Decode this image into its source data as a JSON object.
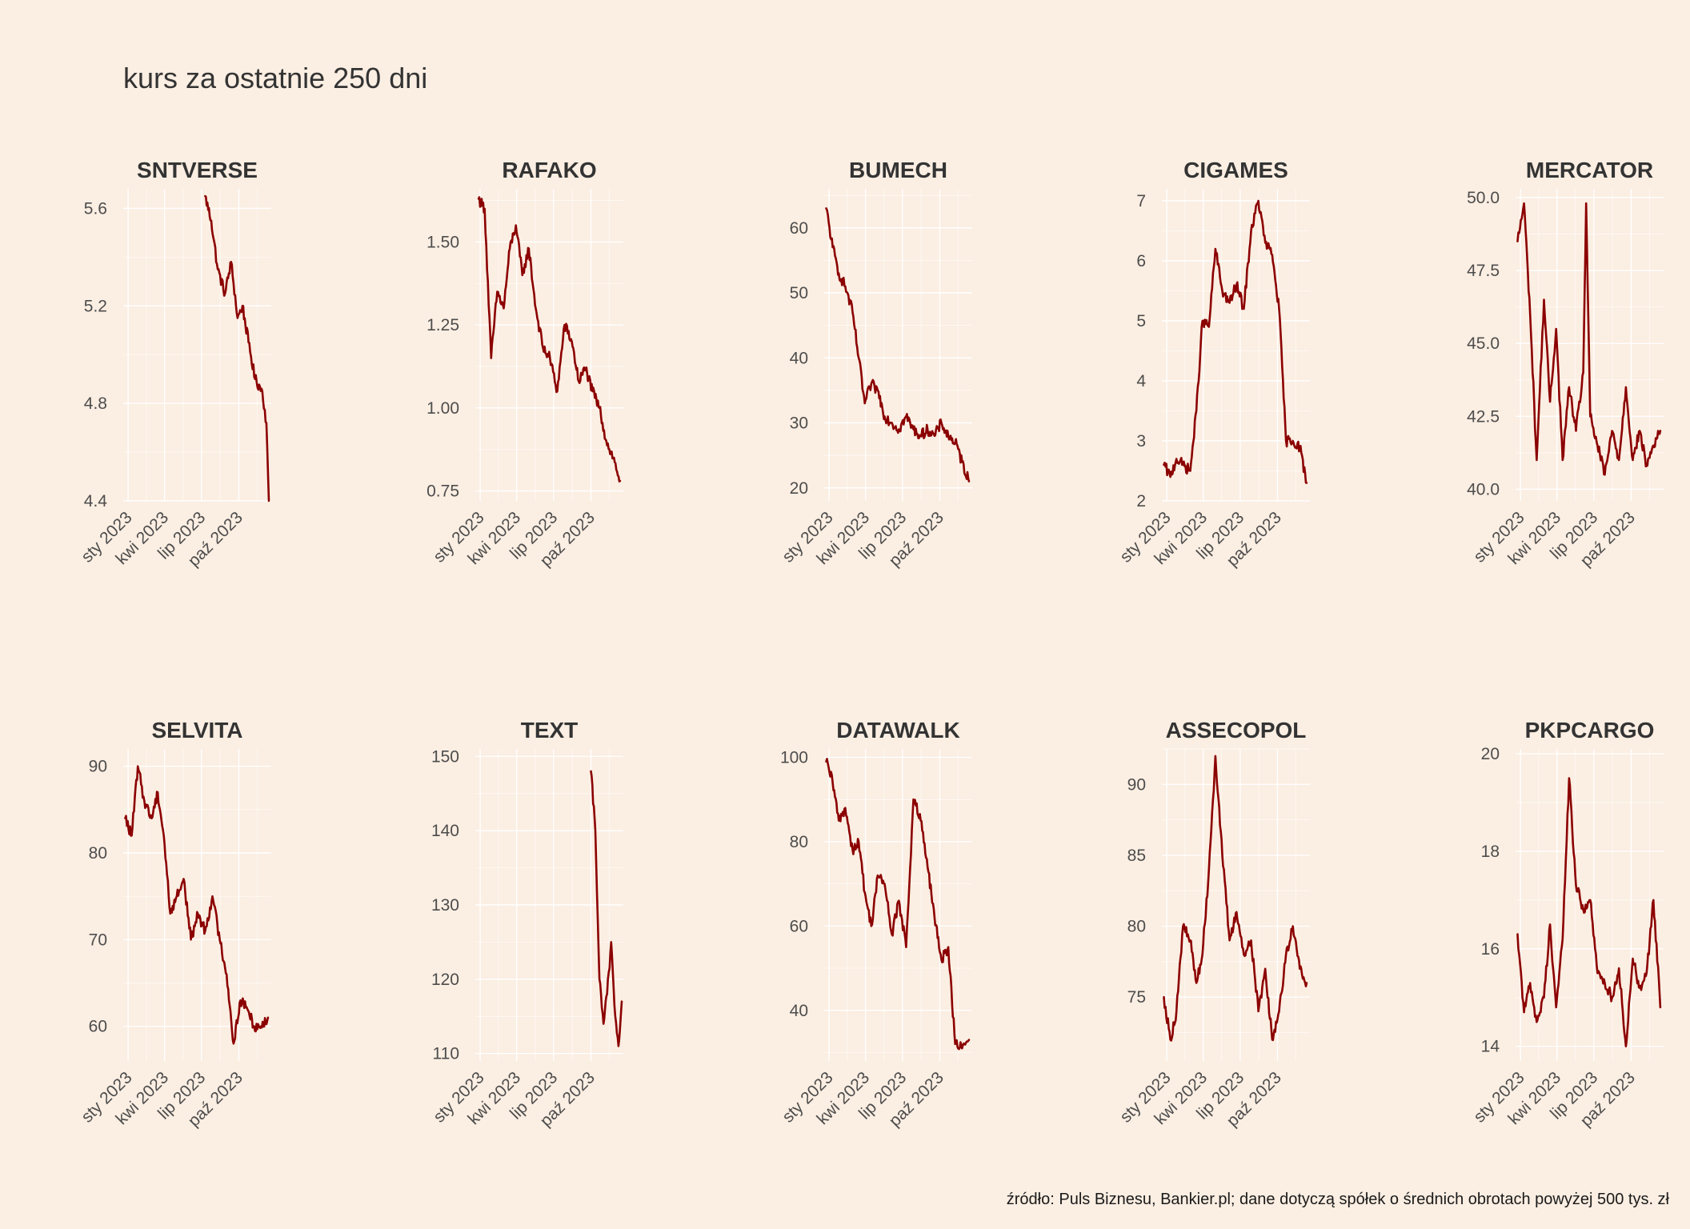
{
  "title": "kurs za ostatnie 250 dni",
  "caption": "źródło: Puls Biznesu, Bankier.pl; dane dotyczą spółek o średnich obrotach powyżej 500 tys. zł",
  "colors": {
    "background": "#fbeee2",
    "line": "#8b0000",
    "grid": "#ffffff",
    "text": "#333333"
  },
  "x_ticks": [
    "sty 2023",
    "kwi 2023",
    "lip 2023",
    "paź 2023"
  ],
  "x_tick_dates": [
    "2023-01-01",
    "2023-04-01",
    "2023-07-01",
    "2023-10-01"
  ],
  "chart_data": [
    {
      "type": "line",
      "title": "SNTVERSE",
      "xlim": [
        "2022-12-20",
        "2023-12-20"
      ],
      "ylim": [
        4.4,
        5.68
      ],
      "yticks": [
        4.4,
        4.8,
        5.2,
        5.6
      ],
      "ytick_labels": [
        "4.4",
        "4.8",
        "5.2",
        "5.6"
      ],
      "series": [
        {
          "x": [
            "2023-07-10",
            "2023-07-25",
            "2023-08-10",
            "2023-08-28",
            "2023-09-12",
            "2023-09-28",
            "2023-10-10",
            "2023-10-25",
            "2023-11-10",
            "2023-11-28",
            "2023-12-08",
            "2023-12-14"
          ],
          "values": [
            5.65,
            5.55,
            5.35,
            5.25,
            5.38,
            5.15,
            5.2,
            5.05,
            4.9,
            4.85,
            4.72,
            4.4
          ]
        }
      ]
    },
    {
      "type": "line",
      "title": "RAFAKO",
      "xlim": [
        "2022-12-20",
        "2023-12-20"
      ],
      "ylim": [
        0.72,
        1.66
      ],
      "yticks": [
        0.75,
        1.0,
        1.25,
        1.5
      ],
      "ytick_labels": [
        "0.75",
        "1.00",
        "1.25",
        "1.50"
      ],
      "series": [
        {
          "x": [
            "2022-12-28",
            "2023-01-12",
            "2023-01-28",
            "2023-02-12",
            "2023-02-28",
            "2023-03-15",
            "2023-03-30",
            "2023-04-15",
            "2023-05-01",
            "2023-05-18",
            "2023-06-05",
            "2023-06-22",
            "2023-07-10",
            "2023-07-28",
            "2023-08-15",
            "2023-09-01",
            "2023-09-18",
            "2023-10-05",
            "2023-10-22",
            "2023-11-08",
            "2023-11-25",
            "2023-12-12"
          ],
          "values": [
            1.63,
            1.6,
            1.15,
            1.35,
            1.3,
            1.48,
            1.55,
            1.4,
            1.48,
            1.3,
            1.18,
            1.15,
            1.05,
            1.25,
            1.2,
            1.08,
            1.12,
            1.05,
            1.0,
            0.9,
            0.85,
            0.78
          ]
        }
      ]
    },
    {
      "type": "line",
      "title": "BUMECH",
      "xlim": [
        "2022-12-20",
        "2023-12-20"
      ],
      "ylim": [
        18,
        66
      ],
      "yticks": [
        20,
        30,
        40,
        50,
        60
      ],
      "ytick_labels": [
        "20",
        "30",
        "40",
        "50",
        "60"
      ],
      "series": [
        {
          "x": [
            "2022-12-25",
            "2023-01-10",
            "2023-01-25",
            "2023-02-10",
            "2023-02-28",
            "2023-03-15",
            "2023-03-30",
            "2023-04-15",
            "2023-05-01",
            "2023-05-18",
            "2023-06-05",
            "2023-06-22",
            "2023-07-10",
            "2023-07-28",
            "2023-08-15",
            "2023-09-01",
            "2023-09-18",
            "2023-10-05",
            "2023-10-22",
            "2023-11-08",
            "2023-11-25",
            "2023-12-12"
          ],
          "values": [
            63,
            57,
            53,
            51,
            47,
            40,
            33,
            36,
            35,
            31,
            30,
            29,
            31,
            29,
            28,
            29,
            28,
            30,
            28,
            27,
            24,
            21
          ]
        }
      ]
    },
    {
      "type": "line",
      "title": "CIGAMES",
      "xlim": [
        "2022-12-20",
        "2023-12-20"
      ],
      "ylim": [
        2.0,
        7.2
      ],
      "yticks": [
        2,
        3,
        4,
        5,
        6,
        7
      ],
      "ytick_labels": [
        "2",
        "3",
        "4",
        "5",
        "6",
        "7"
      ],
      "series": [
        {
          "x": [
            "2022-12-25",
            "2023-01-10",
            "2023-01-25",
            "2023-02-10",
            "2023-02-28",
            "2023-03-15",
            "2023-03-30",
            "2023-04-15",
            "2023-05-01",
            "2023-05-18",
            "2023-06-05",
            "2023-06-22",
            "2023-07-10",
            "2023-07-28",
            "2023-08-15",
            "2023-09-01",
            "2023-09-18",
            "2023-10-05",
            "2023-10-22",
            "2023-11-08",
            "2023-11-25",
            "2023-12-12"
          ],
          "values": [
            2.6,
            2.4,
            2.7,
            2.6,
            2.5,
            3.5,
            5.0,
            4.9,
            6.2,
            5.5,
            5.3,
            5.6,
            5.2,
            6.5,
            7.0,
            6.3,
            6.1,
            5.2,
            3.0,
            3.0,
            2.9,
            2.3
          ]
        }
      ]
    },
    {
      "type": "line",
      "title": "MERCATOR",
      "xlim": [
        "2022-12-20",
        "2023-12-20"
      ],
      "ylim": [
        39.6,
        50.3
      ],
      "yticks": [
        40.0,
        42.5,
        45.0,
        47.5,
        50.0
      ],
      "ytick_labels": [
        "40.0",
        "42.5",
        "45.0",
        "47.5",
        "50.0"
      ],
      "series": [
        {
          "x": [
            "2022-12-25",
            "2023-01-10",
            "2023-01-25",
            "2023-02-10",
            "2023-02-28",
            "2023-03-15",
            "2023-03-30",
            "2023-04-15",
            "2023-05-01",
            "2023-05-18",
            "2023-06-05",
            "2023-06-12",
            "2023-06-22",
            "2023-07-10",
            "2023-07-28",
            "2023-08-15",
            "2023-09-01",
            "2023-09-18",
            "2023-10-05",
            "2023-10-22",
            "2023-11-08",
            "2023-11-25",
            "2023-12-12"
          ],
          "values": [
            48.5,
            49.8,
            46.0,
            41.0,
            46.5,
            43.0,
            45.5,
            41.0,
            43.5,
            42.0,
            44.0,
            49.8,
            42.5,
            41.5,
            40.5,
            42.0,
            41.0,
            43.5,
            41.0,
            42.0,
            40.8,
            41.5,
            42.0
          ]
        }
      ]
    },
    {
      "type": "line",
      "title": "SELVITA",
      "xlim": [
        "2022-12-20",
        "2023-12-20"
      ],
      "ylim": [
        56,
        92
      ],
      "yticks": [
        60,
        70,
        80,
        90
      ],
      "ytick_labels": [
        "60",
        "70",
        "80",
        "90"
      ],
      "series": [
        {
          "x": [
            "2022-12-25",
            "2023-01-10",
            "2023-01-25",
            "2023-02-10",
            "2023-02-28",
            "2023-03-15",
            "2023-03-30",
            "2023-04-15",
            "2023-05-01",
            "2023-05-18",
            "2023-06-05",
            "2023-06-22",
            "2023-07-10",
            "2023-07-28",
            "2023-08-15",
            "2023-09-01",
            "2023-09-18",
            "2023-10-05",
            "2023-10-22",
            "2023-11-08",
            "2023-11-25",
            "2023-12-12"
          ],
          "values": [
            84,
            82,
            90,
            86,
            84,
            87,
            82,
            73,
            75,
            77,
            70,
            73,
            71,
            75,
            70,
            66,
            58,
            63,
            62,
            60,
            60,
            61
          ]
        }
      ]
    },
    {
      "type": "line",
      "title": "TEXT",
      "xlim": [
        "2022-12-20",
        "2023-12-20"
      ],
      "ylim": [
        109,
        151
      ],
      "yticks": [
        110,
        120,
        130,
        140,
        150
      ],
      "ytick_labels": [
        "110",
        "120",
        "130",
        "140",
        "150"
      ],
      "series": [
        {
          "x": [
            "2023-10-01",
            "2023-10-12",
            "2023-10-22",
            "2023-11-01",
            "2023-11-10",
            "2023-11-20",
            "2023-11-30",
            "2023-12-08",
            "2023-12-16"
          ],
          "values": [
            148,
            140,
            120,
            114,
            118,
            125,
            115,
            111,
            117
          ]
        }
      ]
    },
    {
      "type": "line",
      "title": "DATAWALK",
      "xlim": [
        "2022-12-20",
        "2023-12-20"
      ],
      "ylim": [
        28,
        102
      ],
      "yticks": [
        40,
        60,
        80,
        100
      ],
      "ytick_labels": [
        "40",
        "60",
        "80",
        "100"
      ],
      "series": [
        {
          "x": [
            "2022-12-25",
            "2023-01-10",
            "2023-01-25",
            "2023-02-10",
            "2023-02-28",
            "2023-03-15",
            "2023-03-30",
            "2023-04-15",
            "2023-05-01",
            "2023-05-18",
            "2023-06-05",
            "2023-06-22",
            "2023-07-10",
            "2023-07-28",
            "2023-08-15",
            "2023-09-01",
            "2023-09-18",
            "2023-10-05",
            "2023-10-22",
            "2023-11-08",
            "2023-11-25",
            "2023-12-12"
          ],
          "values": [
            99,
            94,
            85,
            88,
            78,
            80,
            68,
            60,
            72,
            70,
            58,
            66,
            55,
            90,
            85,
            74,
            62,
            52,
            55,
            32,
            31,
            33
          ]
        }
      ]
    },
    {
      "type": "line",
      "title": "ASSECOPOL",
      "xlim": [
        "2022-12-20",
        "2023-12-20"
      ],
      "ylim": [
        70.5,
        92.5
      ],
      "yticks": [
        75,
        80,
        85,
        90
      ],
      "ytick_labels": [
        "75",
        "80",
        "85",
        "90"
      ],
      "series": [
        {
          "x": [
            "2022-12-25",
            "2023-01-10",
            "2023-01-25",
            "2023-02-10",
            "2023-02-28",
            "2023-03-15",
            "2023-03-30",
            "2023-04-15",
            "2023-05-01",
            "2023-05-18",
            "2023-06-05",
            "2023-06-22",
            "2023-07-10",
            "2023-07-28",
            "2023-08-15",
            "2023-09-01",
            "2023-09-18",
            "2023-10-05",
            "2023-10-22",
            "2023-11-08",
            "2023-11-25",
            "2023-12-12"
          ],
          "values": [
            75,
            72,
            74,
            80,
            79,
            76,
            78,
            84,
            92,
            85,
            79,
            81,
            78,
            79,
            74,
            77,
            72,
            74,
            78,
            80,
            77,
            76
          ]
        }
      ]
    },
    {
      "type": "line",
      "title": "PKPCARGO",
      "xlim": [
        "2022-12-20",
        "2023-12-20"
      ],
      "ylim": [
        13.7,
        20.1
      ],
      "yticks": [
        14,
        16,
        18,
        20
      ],
      "ytick_labels": [
        "14",
        "16",
        "18",
        "20"
      ],
      "series": [
        {
          "x": [
            "2022-12-25",
            "2023-01-10",
            "2023-01-25",
            "2023-02-10",
            "2023-02-28",
            "2023-03-15",
            "2023-03-30",
            "2023-04-15",
            "2023-05-01",
            "2023-05-18",
            "2023-06-05",
            "2023-06-22",
            "2023-07-10",
            "2023-07-28",
            "2023-08-15",
            "2023-09-01",
            "2023-09-18",
            "2023-10-05",
            "2023-10-22",
            "2023-11-08",
            "2023-11-25",
            "2023-12-12"
          ],
          "values": [
            16.3,
            14.7,
            15.3,
            14.5,
            15.0,
            16.5,
            14.8,
            16.2,
            19.5,
            17.3,
            16.8,
            17.0,
            15.5,
            15.3,
            15.0,
            15.6,
            14.0,
            15.8,
            15.2,
            15.5,
            17.0,
            14.8
          ]
        }
      ]
    }
  ]
}
